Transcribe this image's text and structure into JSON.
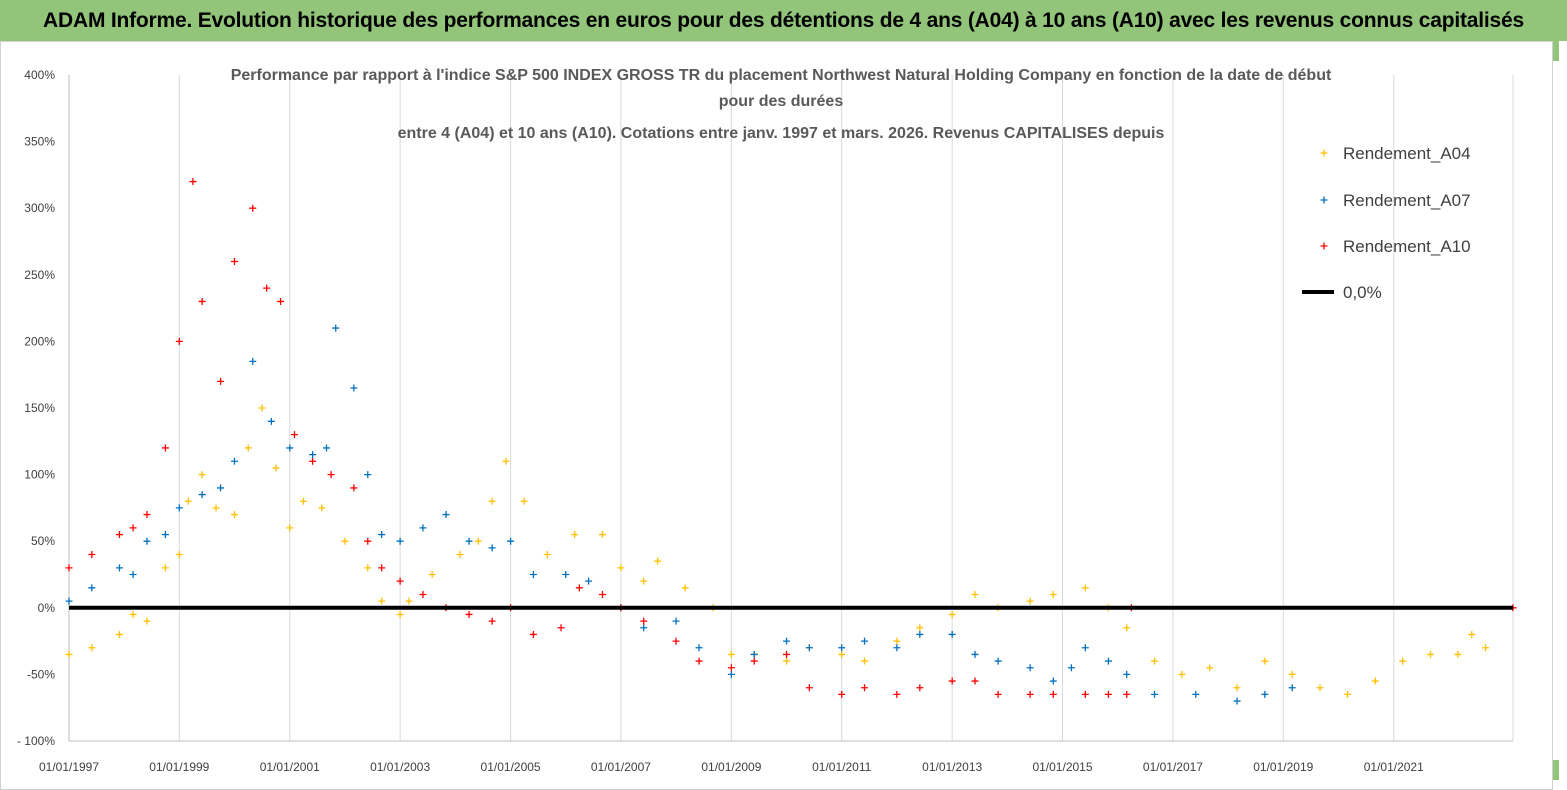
{
  "header": {
    "title": "ADAM Informe. Evolution historique des performances en euros pour des détentions de 4 ans (A04) à 10 ans (A10) avec les revenus connus capitalisés"
  },
  "chart_data": {
    "type": "scatter",
    "title_lines": [
      "Performance par rapport à l'indice S&P 500 INDEX GROSS TR  du placement Northwest Natural Holding Company en fonction de la date de début",
      "pour des durées",
      "entre 4 (A04) et 10 ans (A10). Cotations entre janv. 1997 et mars. 2026. Revenus CAPITALISES depuis"
    ],
    "xlabel": "",
    "ylabel": "",
    "ylim": [
      -100,
      400
    ],
    "xlim": [
      "1997-01-01",
      "2023-03-01"
    ],
    "y_ticks": [
      -100,
      -50,
      0,
      50,
      100,
      150,
      200,
      250,
      300,
      350,
      400
    ],
    "y_tick_labels": [
      "- 100%",
      "-50%",
      "0%",
      "50%",
      "100%",
      "150%",
      "200%",
      "250%",
      "300%",
      "350%",
      "400%"
    ],
    "x_tick_labels": [
      "01/01/1997",
      "01/01/1999",
      "01/01/2001",
      "01/01/2003",
      "01/01/2005",
      "01/01/2007",
      "01/01/2009",
      "01/01/2011",
      "01/01/2013",
      "01/01/2015",
      "01/01/2017",
      "01/01/2019",
      "01/01/2021"
    ],
    "x_ticks": [
      "1997-01-01",
      "1999-01-01",
      "2001-01-01",
      "2003-01-01",
      "2005-01-01",
      "2007-01-01",
      "2009-01-01",
      "2011-01-01",
      "2013-01-01",
      "2015-01-01",
      "2017-01-01",
      "2019-01-01",
      "2021-01-01"
    ],
    "grid": "vertical",
    "legend_position": "top-right",
    "series": [
      {
        "name": "Rendement_A04",
        "color": "#ffc000",
        "marker": "plus",
        "points": [
          [
            "1997-01-01",
            -35
          ],
          [
            "1997-06-01",
            -30
          ],
          [
            "1997-12-01",
            -20
          ],
          [
            "1998-03-01",
            -5
          ],
          [
            "1998-06-01",
            -10
          ],
          [
            "1998-10-01",
            30
          ],
          [
            "1999-01-01",
            40
          ],
          [
            "1999-03-01",
            80
          ],
          [
            "1999-06-01",
            100
          ],
          [
            "1999-09-01",
            75
          ],
          [
            "2000-01-01",
            70
          ],
          [
            "2000-04-01",
            120
          ],
          [
            "2000-07-01",
            150
          ],
          [
            "2000-10-01",
            105
          ],
          [
            "2001-01-01",
            60
          ],
          [
            "2001-04-01",
            80
          ],
          [
            "2001-08-01",
            75
          ],
          [
            "2002-01-01",
            50
          ],
          [
            "2002-06-01",
            30
          ],
          [
            "2002-09-01",
            5
          ],
          [
            "2003-01-01",
            -5
          ],
          [
            "2003-03-01",
            5
          ],
          [
            "2003-08-01",
            25
          ],
          [
            "2004-02-01",
            40
          ],
          [
            "2004-06-01",
            50
          ],
          [
            "2004-09-01",
            80
          ],
          [
            "2004-12-01",
            110
          ],
          [
            "2005-04-01",
            80
          ],
          [
            "2005-09-01",
            40
          ],
          [
            "2006-03-01",
            55
          ],
          [
            "2006-09-01",
            55
          ],
          [
            "2007-01-01",
            30
          ],
          [
            "2007-06-01",
            20
          ],
          [
            "2007-09-01",
            35
          ],
          [
            "2008-03-01",
            15
          ],
          [
            "2008-09-01",
            0
          ],
          [
            "2009-01-01",
            -35
          ],
          [
            "2009-06-01",
            -35
          ],
          [
            "2010-01-01",
            -40
          ],
          [
            "2010-06-01",
            -30
          ],
          [
            "2011-01-01",
            -35
          ],
          [
            "2011-06-01",
            -40
          ],
          [
            "2012-01-01",
            -25
          ],
          [
            "2012-06-01",
            -15
          ],
          [
            "2013-01-01",
            -5
          ],
          [
            "2013-06-01",
            10
          ],
          [
            "2013-11-01",
            0
          ],
          [
            "2014-06-01",
            5
          ],
          [
            "2014-11-01",
            10
          ],
          [
            "2015-06-01",
            15
          ],
          [
            "2015-11-01",
            0
          ],
          [
            "2016-03-01",
            -15
          ],
          [
            "2016-09-01",
            -40
          ],
          [
            "2017-03-01",
            -50
          ],
          [
            "2017-09-01",
            -45
          ],
          [
            "2018-03-01",
            -60
          ],
          [
            "2018-09-01",
            -40
          ],
          [
            "2019-03-01",
            -50
          ],
          [
            "2019-09-01",
            -60
          ],
          [
            "2020-03-01",
            -65
          ],
          [
            "2020-09-01",
            -55
          ],
          [
            "2021-03-01",
            -40
          ],
          [
            "2021-09-01",
            -35
          ],
          [
            "2022-03-01",
            -35
          ],
          [
            "2022-06-01",
            -20
          ],
          [
            "2022-09-01",
            -30
          ]
        ]
      },
      {
        "name": "Rendement_A07",
        "color": "#0070c0",
        "marker": "plus",
        "points": [
          [
            "1997-01-01",
            5
          ],
          [
            "1997-06-01",
            15
          ],
          [
            "1997-12-01",
            30
          ],
          [
            "1998-03-01",
            25
          ],
          [
            "1998-06-01",
            50
          ],
          [
            "1998-10-01",
            55
          ],
          [
            "1999-01-01",
            75
          ],
          [
            "1999-06-01",
            85
          ],
          [
            "1999-10-01",
            90
          ],
          [
            "2000-01-01",
            110
          ],
          [
            "2000-05-01",
            185
          ],
          [
            "2000-09-01",
            140
          ],
          [
            "2001-01-01",
            120
          ],
          [
            "2001-06-01",
            115
          ],
          [
            "2001-09-01",
            120
          ],
          [
            "2001-11-01",
            210
          ],
          [
            "2002-03-01",
            165
          ],
          [
            "2002-06-01",
            100
          ],
          [
            "2002-09-01",
            55
          ],
          [
            "2003-01-01",
            50
          ],
          [
            "2003-06-01",
            60
          ],
          [
            "2003-11-01",
            70
          ],
          [
            "2004-04-01",
            50
          ],
          [
            "2004-09-01",
            45
          ],
          [
            "2005-01-01",
            50
          ],
          [
            "2005-06-01",
            25
          ],
          [
            "2006-01-01",
            25
          ],
          [
            "2006-06-01",
            20
          ],
          [
            "2007-01-01",
            0
          ],
          [
            "2007-06-01",
            -15
          ],
          [
            "2008-01-01",
            -10
          ],
          [
            "2008-06-01",
            -30
          ],
          [
            "2009-01-01",
            -50
          ],
          [
            "2009-06-01",
            -35
          ],
          [
            "2010-01-01",
            -25
          ],
          [
            "2010-06-01",
            -30
          ],
          [
            "2011-01-01",
            -30
          ],
          [
            "2011-06-01",
            -25
          ],
          [
            "2012-01-01",
            -30
          ],
          [
            "2012-06-01",
            -20
          ],
          [
            "2013-01-01",
            -20
          ],
          [
            "2013-06-01",
            -35
          ],
          [
            "2013-11-01",
            -40
          ],
          [
            "2014-06-01",
            -45
          ],
          [
            "2014-11-01",
            -55
          ],
          [
            "2015-03-01",
            -45
          ],
          [
            "2015-06-01",
            -30
          ],
          [
            "2015-11-01",
            -40
          ],
          [
            "2016-03-01",
            -50
          ],
          [
            "2016-09-01",
            -65
          ],
          [
            "2017-06-01",
            -65
          ],
          [
            "2018-03-01",
            -70
          ],
          [
            "2018-09-01",
            -65
          ],
          [
            "2019-03-01",
            -60
          ]
        ]
      },
      {
        "name": "Rendement_A10",
        "color": "#ff0000",
        "marker": "plus",
        "points": [
          [
            "1997-01-01",
            30
          ],
          [
            "1997-06-01",
            40
          ],
          [
            "1997-12-01",
            55
          ],
          [
            "1998-03-01",
            60
          ],
          [
            "1998-06-01",
            70
          ],
          [
            "1998-10-01",
            120
          ],
          [
            "1999-01-01",
            200
          ],
          [
            "1999-04-01",
            320
          ],
          [
            "1999-06-01",
            230
          ],
          [
            "1999-10-01",
            170
          ],
          [
            "2000-01-01",
            260
          ],
          [
            "2000-05-01",
            300
          ],
          [
            "2000-08-01",
            240
          ],
          [
            "2000-11-01",
            230
          ],
          [
            "2001-02-01",
            130
          ],
          [
            "2001-06-01",
            110
          ],
          [
            "2001-10-01",
            100
          ],
          [
            "2002-03-01",
            90
          ],
          [
            "2002-06-01",
            50
          ],
          [
            "2002-09-01",
            30
          ],
          [
            "2003-01-01",
            20
          ],
          [
            "2003-06-01",
            10
          ],
          [
            "2003-11-01",
            0
          ],
          [
            "2004-04-01",
            -5
          ],
          [
            "2004-09-01",
            -10
          ],
          [
            "2005-01-01",
            0
          ],
          [
            "2005-06-01",
            -20
          ],
          [
            "2005-12-01",
            -15
          ],
          [
            "2006-04-01",
            15
          ],
          [
            "2006-09-01",
            10
          ],
          [
            "2007-01-01",
            0
          ],
          [
            "2007-06-01",
            -10
          ],
          [
            "2008-01-01",
            -25
          ],
          [
            "2008-06-01",
            -40
          ],
          [
            "2009-01-01",
            -45
          ],
          [
            "2009-06-01",
            -40
          ],
          [
            "2010-01-01",
            -35
          ],
          [
            "2010-06-01",
            -60
          ],
          [
            "2011-01-01",
            -65
          ],
          [
            "2011-06-01",
            -60
          ],
          [
            "2012-01-01",
            -65
          ],
          [
            "2012-06-01",
            -60
          ],
          [
            "2013-01-01",
            -55
          ],
          [
            "2013-06-01",
            -55
          ],
          [
            "2013-11-01",
            -65
          ],
          [
            "2014-06-01",
            -65
          ],
          [
            "2014-11-01",
            -65
          ],
          [
            "2015-06-01",
            -65
          ],
          [
            "2015-11-01",
            -65
          ],
          [
            "2016-03-01",
            -65
          ],
          [
            "2016-04-01",
            0
          ],
          [
            "2023-03-01",
            0
          ]
        ]
      },
      {
        "name": "0,0%",
        "color": "#000000",
        "marker": "line",
        "points": [
          [
            "1997-01-01",
            0
          ],
          [
            "2023-03-01",
            0
          ]
        ]
      }
    ]
  }
}
